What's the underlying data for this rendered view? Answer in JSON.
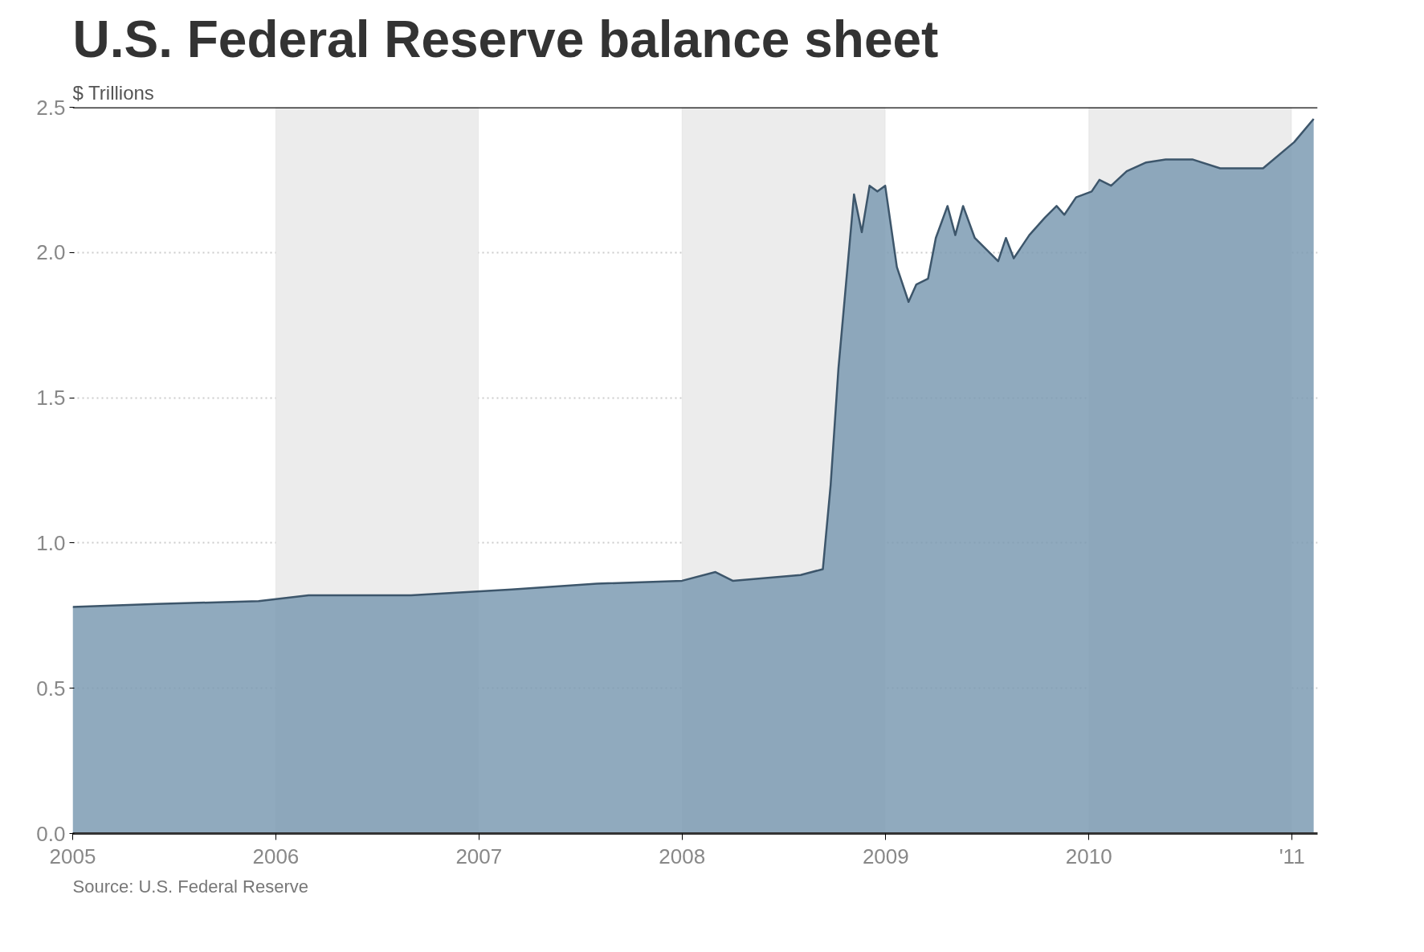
{
  "chart_data": {
    "type": "area",
    "title": "U.S. Federal Reserve balance sheet",
    "ylabel": "$ Trillions",
    "annotations": [
      "Source: U.S. Federal Reserve"
    ],
    "x": [
      "2005-01-01",
      "2005-06-01",
      "2005-12-01",
      "2006-03-01",
      "2006-09-01",
      "2007-03-01",
      "2007-08-01",
      "2008-01-01",
      "2008-03-01",
      "2008-04-01",
      "2008-08-01",
      "2008-09-10",
      "2008-09-24",
      "2008-10-08",
      "2008-10-29",
      "2008-11-05",
      "2008-11-19",
      "2008-12-03",
      "2008-12-17",
      "2008-12-31",
      "2009-01-21",
      "2009-02-11",
      "2009-02-25",
      "2009-03-18",
      "2009-04-01",
      "2009-04-22",
      "2009-05-06",
      "2009-05-20",
      "2009-06-10",
      "2009-07-01",
      "2009-07-22",
      "2009-08-05",
      "2009-08-19",
      "2009-09-16",
      "2009-10-14",
      "2009-11-04",
      "2009-11-18",
      "2009-12-09",
      "2010-01-06",
      "2010-01-20",
      "2010-02-10",
      "2010-03-10",
      "2010-04-14",
      "2010-05-19",
      "2010-07-07",
      "2010-08-25",
      "2010-10-20",
      "2010-11-10",
      "2011-01-05",
      "2011-02-09"
    ],
    "series": [
      {
        "color": "#7d9bb3",
        "values": [
          0.78,
          0.79,
          0.8,
          0.82,
          0.82,
          0.84,
          0.86,
          0.87,
          0.9,
          0.87,
          0.89,
          0.91,
          1.2,
          1.6,
          2.05,
          2.2,
          2.07,
          2.23,
          2.21,
          2.23,
          1.95,
          1.83,
          1.89,
          1.91,
          2.05,
          2.16,
          2.06,
          2.16,
          2.05,
          2.01,
          1.97,
          2.05,
          1.98,
          2.06,
          2.12,
          2.16,
          2.13,
          2.19,
          2.21,
          2.25,
          2.23,
          2.28,
          2.31,
          2.32,
          2.32,
          2.29,
          2.29,
          2.29,
          2.38,
          2.46
        ]
      }
    ],
    "xlim": [
      "2005-01-01",
      "2011-02-16"
    ],
    "xticks": [
      {
        "value": "2005-01-01",
        "label": "2005"
      },
      {
        "value": "2006-01-01",
        "label": "2006"
      },
      {
        "value": "2007-01-01",
        "label": "2007"
      },
      {
        "value": "2008-01-01",
        "label": "2008"
      },
      {
        "value": "2009-01-01",
        "label": "2009"
      },
      {
        "value": "2010-01-01",
        "label": "2010"
      },
      {
        "value": "2011-01-01",
        "label": "'11"
      }
    ],
    "ylim": [
      0,
      2.5
    ],
    "yticks": [
      {
        "value": 0,
        "label": "0.0"
      },
      {
        "value": 0.5,
        "label": "0.5"
      },
      {
        "value": 1,
        "label": "1.0"
      },
      {
        "value": 1.5,
        "label": "1.5"
      },
      {
        "value": 2,
        "label": "2.0"
      },
      {
        "value": 2.5,
        "label": "2.5"
      }
    ],
    "bands": [
      {
        "axis": "x",
        "from": "2006-01-01",
        "to": "2006-12-31",
        "color": "#ececec"
      },
      {
        "axis": "x",
        "from": "2008-01-01",
        "to": "2008-12-31",
        "color": "#ececec"
      },
      {
        "axis": "x",
        "from": "2010-01-01",
        "to": "2010-12-31",
        "color": "#ececec"
      }
    ],
    "grid": "y"
  }
}
